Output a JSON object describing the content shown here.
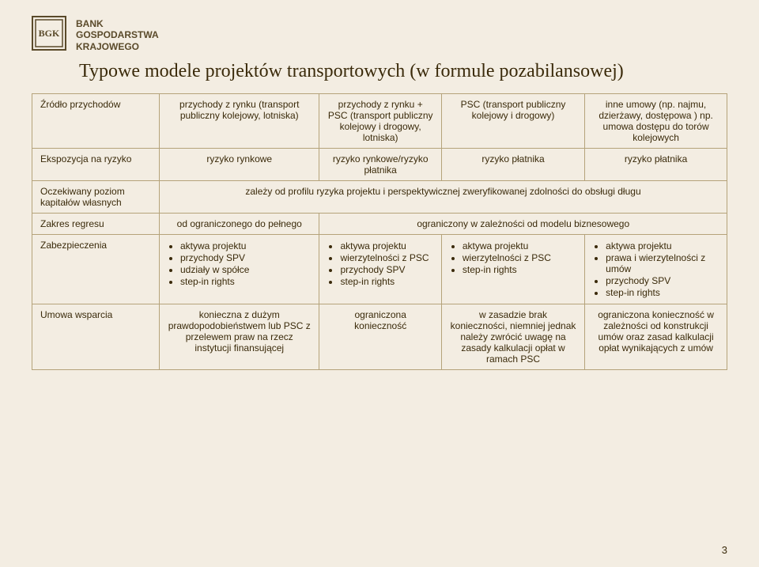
{
  "header": {
    "bank_line1": "BANK",
    "bank_line2": "GOSPODARSTWA",
    "bank_line3": "KRAJOWEGO",
    "logo_color": "#5a4a2a"
  },
  "title": "Typowe modele projektów transportowych (w formule pozabilansowej)",
  "rows": {
    "r1_label": "Źródło przychodów",
    "r1_c1": "przychody z rynku (transport publiczny kolejowy, lotniska)",
    "r1_c2": "przychody z rynku + PSC\n(transport publiczny kolejowy i drogowy, lotniska)",
    "r1_c3": "PSC\n(transport publiczny kolejowy i drogowy)",
    "r1_c4": "inne umowy (np. najmu, dzierżawy, dostępowa ) np. umowa dostępu do torów kolejowych",
    "r2_label": "Ekspozycja na ryzyko",
    "r2_c1": "ryzyko rynkowe",
    "r2_c2": "ryzyko rynkowe/ryzyko płatnika",
    "r2_c3": "ryzyko płatnika",
    "r2_c4": "ryzyko płatnika",
    "r3_label": "Oczekiwany poziom kapitałów własnych",
    "r3_merged": "zależy od profilu ryzyka projektu i perspektywicznej zweryfikowanej zdolności do obsługi długu",
    "r4_label": "Zakres regresu",
    "r4_c1": "od ograniczonego do pełnego",
    "r4_merged": "ograniczony w zależności od modelu biznesowego",
    "r5_label": "Zabezpieczenia",
    "r5_c1": [
      "aktywa projektu",
      "przychody SPV",
      "udziały w spółce",
      "step-in rights"
    ],
    "r5_c2": [
      "aktywa projektu",
      "wierzytelności z PSC",
      "przychody SPV",
      "step-in rights"
    ],
    "r5_c3": [
      "aktywa projektu",
      "wierzytelności z PSC",
      "step-in rights"
    ],
    "r5_c4": [
      "aktywa projektu",
      "prawa i wierzytelności z umów",
      "przychody SPV",
      "step-in rights"
    ],
    "r6_label": "Umowa wsparcia",
    "r6_c1": "konieczna z dużym prawdopodobieństwem lub PSC z przelewem praw na rzecz instytucji finansującej",
    "r6_c2": "ograniczona konieczność",
    "r6_c3": "w zasadzie brak konieczności, niemniej jednak należy zwrócić uwagę na zasady kalkulacji opłat w ramach PSC",
    "r6_c4": "ograniczona konieczność w zależności od konstrukcji umów oraz zasad kalkulacji opłat wynikających z umów"
  },
  "page_number": "3"
}
